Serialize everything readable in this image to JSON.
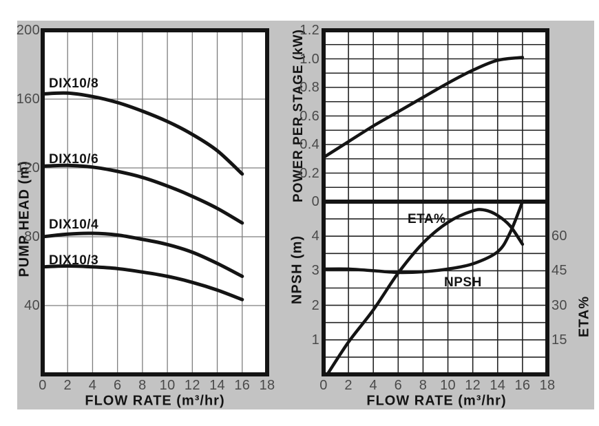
{
  "colors": {
    "panel_background": "#c3c3c3",
    "plot_background": "#ffffff",
    "curve": "#141414",
    "border": "#141414",
    "grid_left_chart": "#7d7d7d",
    "grid_right_chart": "#222222",
    "tick_text": "#4a4a4a",
    "title_text": "#141414"
  },
  "chart_data": [
    {
      "id": "pump_head",
      "type": "line",
      "title": "",
      "xlabel": "FLOW RATE (m³/hr)",
      "ylabel": "PUMP HEAD (m)",
      "xlim": [
        0,
        18
      ],
      "ylim": [
        0,
        200
      ],
      "xticks": [
        0,
        2,
        4,
        6,
        8,
        10,
        12,
        14,
        16,
        18
      ],
      "yticks": [
        200,
        160,
        120,
        80,
        40
      ],
      "x_gridlines": [
        2,
        4,
        6,
        8,
        10,
        12,
        14,
        16
      ],
      "y_gridlines": [
        40,
        80,
        120,
        160
      ],
      "grid": true,
      "legend_position": "inline-labels",
      "series": [
        {
          "name": "DIX10/8",
          "points": [
            [
              0,
              163
            ],
            [
              2,
              163.5
            ],
            [
              4,
              161.5
            ],
            [
              6,
              158
            ],
            [
              8,
              153
            ],
            [
              10,
              147
            ],
            [
              12,
              139.5
            ],
            [
              14,
              130
            ],
            [
              16,
              116.5
            ]
          ]
        },
        {
          "name": "DIX10/6",
          "points": [
            [
              0,
              121
            ],
            [
              2,
              121.5
            ],
            [
              4,
              120.5
            ],
            [
              6,
              118
            ],
            [
              8,
              114.5
            ],
            [
              10,
              109.5
            ],
            [
              12,
              103.5
            ],
            [
              14,
              96.5
            ],
            [
              16,
              88
            ]
          ]
        },
        {
          "name": "DIX10/4",
          "points": [
            [
              0,
              80
            ],
            [
              2,
              81.5
            ],
            [
              4,
              82
            ],
            [
              6,
              81
            ],
            [
              8,
              78.5
            ],
            [
              10,
              75.5
            ],
            [
              12,
              71
            ],
            [
              14,
              64.5
            ],
            [
              16,
              57
            ]
          ]
        },
        {
          "name": "DIX10/3",
          "points": [
            [
              0,
              62.5
            ],
            [
              2,
              63
            ],
            [
              4,
              62.5
            ],
            [
              6,
              61.5
            ],
            [
              8,
              59.5
            ],
            [
              10,
              57
            ],
            [
              12,
              53.5
            ],
            [
              14,
              49
            ],
            [
              16,
              43.5
            ]
          ]
        }
      ]
    },
    {
      "id": "power_per_stage",
      "type": "line",
      "title": "",
      "ylabel": "POWER PER STAGE (kW)",
      "xlim": [
        0,
        18
      ],
      "ylim": [
        0,
        1.2
      ],
      "yticks": [
        "1.2",
        "1.0",
        "0.8",
        "0.6",
        "0.4",
        "0.2",
        "0"
      ],
      "x_gridlines": [
        2,
        4,
        6,
        8,
        10,
        12,
        14,
        16
      ],
      "y_gridlines": [
        0.1,
        0.2,
        0.3,
        0.4,
        0.5,
        0.6,
        0.7,
        0.8,
        0.9,
        1.0,
        1.1
      ],
      "grid": true,
      "series": [
        {
          "name": "POWER",
          "points": [
            [
              0,
              0.31
            ],
            [
              2,
              0.42
            ],
            [
              4,
              0.53
            ],
            [
              6,
              0.63
            ],
            [
              8,
              0.73
            ],
            [
              10,
              0.83
            ],
            [
              12,
              0.92
            ],
            [
              14,
              0.99
            ],
            [
              16,
              1.01
            ]
          ]
        }
      ]
    },
    {
      "id": "npsh_eta",
      "type": "line",
      "title": "",
      "xlabel": "FLOW RATE (m³/hr)",
      "ylabel_left": "NPSH (m)",
      "ylabel_right": "ETA%",
      "xlim": [
        0,
        18
      ],
      "ylim_left": [
        0,
        5
      ],
      "ylim_right": [
        0,
        75
      ],
      "xticks": [
        0,
        2,
        4,
        6,
        8,
        10,
        12,
        14,
        16,
        18
      ],
      "yticks_left": [
        4,
        3,
        2,
        1
      ],
      "yticks_right": [
        60,
        45,
        30,
        15
      ],
      "x_gridlines": [
        2,
        4,
        6,
        8,
        10,
        12,
        14,
        16
      ],
      "y_gridlines_left": [
        0.5,
        1,
        1.5,
        2,
        2.5,
        3,
        3.5,
        4,
        4.5
      ],
      "grid": true,
      "series": [
        {
          "name": "ETA%",
          "axis": "right",
          "points": [
            [
              0.3,
              0
            ],
            [
              2,
              14
            ],
            [
              4,
              28
            ],
            [
              6,
              44
            ],
            [
              8,
              57
            ],
            [
              10,
              66
            ],
            [
              12,
              71
            ],
            [
              13,
              71.3
            ],
            [
              14,
              69
            ],
            [
              15,
              64.5
            ],
            [
              16,
              56.5
            ]
          ]
        },
        {
          "name": "NPSH",
          "axis": "left",
          "points": [
            [
              0,
              3.05
            ],
            [
              2,
              3.05
            ],
            [
              4,
              3.0
            ],
            [
              6,
              2.95
            ],
            [
              8,
              2.97
            ],
            [
              10,
              3.05
            ],
            [
              12,
              3.2
            ],
            [
              14,
              3.55
            ],
            [
              15,
              4.1
            ],
            [
              16,
              5.0
            ]
          ]
        }
      ]
    }
  ]
}
